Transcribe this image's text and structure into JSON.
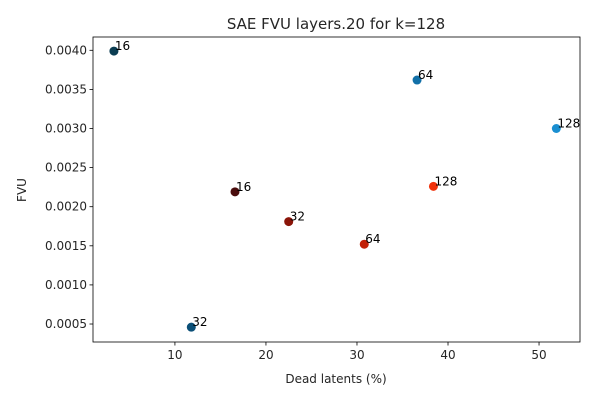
{
  "chart_data": {
    "type": "scatter",
    "title": "SAE FVU layers.20 for k=128",
    "xlabel": "Dead latents (%)",
    "ylabel": "FVU",
    "xlim": [
      1.0,
      54.5
    ],
    "ylim": [
      0.00027,
      0.00417
    ],
    "xticks": [
      10,
      20,
      30,
      40,
      50
    ],
    "xtick_labels": [
      "10",
      "20",
      "30",
      "40",
      "50"
    ],
    "yticks": [
      0.0005,
      0.001,
      0.0015,
      0.002,
      0.0025,
      0.003,
      0.0035,
      0.004
    ],
    "ytick_labels": [
      "0.0005",
      "0.0010",
      "0.0015",
      "0.0020",
      "0.0025",
      "0.0030",
      "0.0035",
      "0.0040"
    ],
    "grid": false,
    "points": [
      {
        "x": 3.3,
        "y": 0.00399,
        "label": "16",
        "color": "#0a3d52"
      },
      {
        "x": 11.8,
        "y": 0.00046,
        "label": "32",
        "color": "#0b4f77"
      },
      {
        "x": 36.6,
        "y": 0.00362,
        "label": "64",
        "color": "#1270a8"
      },
      {
        "x": 51.9,
        "y": 0.003,
        "label": "128",
        "color": "#1a8fd1"
      },
      {
        "x": 16.6,
        "y": 0.00219,
        "label": "16",
        "color": "#4a0d0d"
      },
      {
        "x": 22.5,
        "y": 0.00181,
        "label": "32",
        "color": "#8a1408"
      },
      {
        "x": 30.8,
        "y": 0.00152,
        "label": "64",
        "color": "#c22108"
      },
      {
        "x": 38.4,
        "y": 0.00226,
        "label": "128",
        "color": "#f0310a"
      }
    ]
  }
}
